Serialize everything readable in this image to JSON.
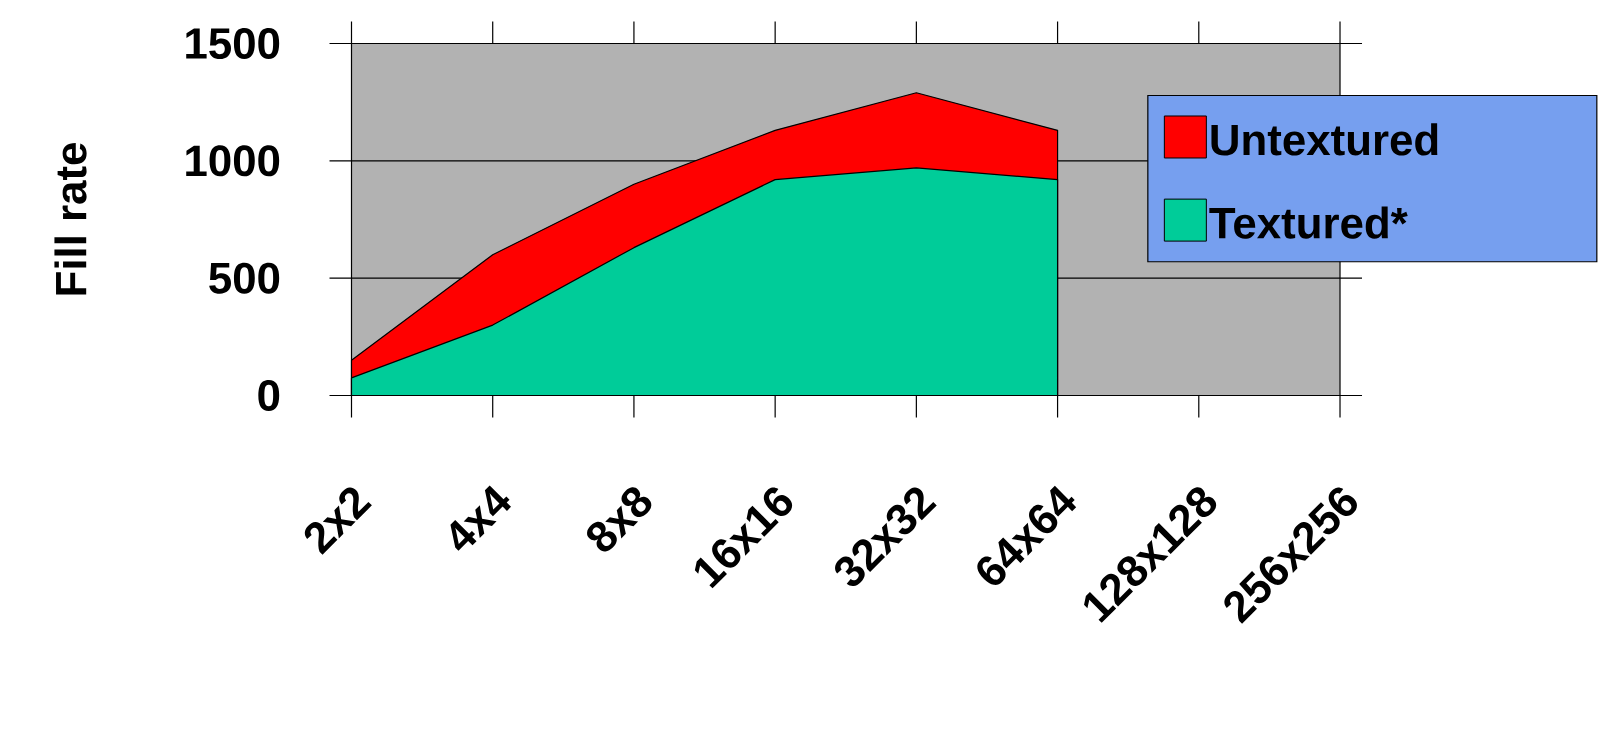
{
  "chart_data": {
    "type": "area",
    "ylabel": "Fill rate",
    "categories": [
      "2x2",
      "4x4",
      "8x8",
      "16x16",
      "32x32",
      "64x64",
      "128x128",
      "256x256"
    ],
    "series": [
      {
        "name": "Untextured",
        "color": "#ff0000",
        "values": [
          150,
          600,
          900,
          1130,
          1290,
          1130,
          null,
          null
        ]
      },
      {
        "name": "Textured*",
        "color": "#00cc99",
        "values": [
          75,
          300,
          630,
          920,
          970,
          920,
          null,
          null
        ]
      }
    ],
    "ylim": [
      0,
      1500
    ],
    "yticks": [
      0,
      500,
      1000,
      1500
    ],
    "grid": "y",
    "legend": "right"
  }
}
